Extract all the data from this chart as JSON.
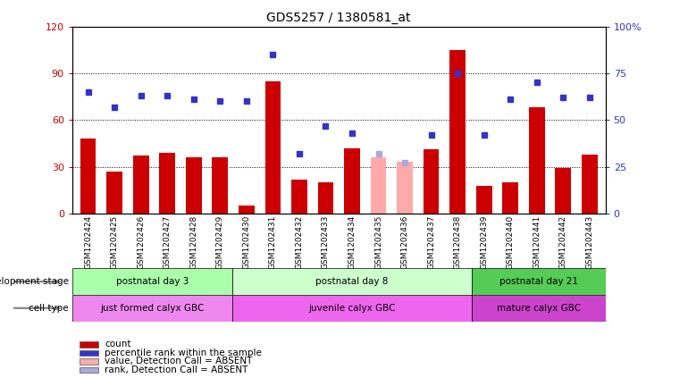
{
  "title": "GDS5257 / 1380581_at",
  "categories": [
    "GSM1202424",
    "GSM1202425",
    "GSM1202426",
    "GSM1202427",
    "GSM1202428",
    "GSM1202429",
    "GSM1202430",
    "GSM1202431",
    "GSM1202432",
    "GSM1202433",
    "GSM1202434",
    "GSM1202435",
    "GSM1202436",
    "GSM1202437",
    "GSM1202438",
    "GSM1202439",
    "GSM1202440",
    "GSM1202441",
    "GSM1202442",
    "GSM1202443"
  ],
  "red_bars": [
    48,
    27,
    37,
    39,
    36,
    36,
    5,
    85,
    22,
    20,
    42,
    0,
    0,
    41,
    105,
    18,
    20,
    68,
    29,
    38
  ],
  "absent_bar_values": [
    36,
    33
  ],
  "absent_bar_indices": [
    11,
    12
  ],
  "blue_dots": [
    65,
    57,
    63,
    63,
    61,
    60,
    60,
    85,
    32,
    47,
    43,
    0,
    0,
    42,
    75,
    42,
    61,
    70,
    62,
    62
  ],
  "absent_dot_values": [
    32,
    27
  ],
  "absent_dot_indices": [
    11,
    12
  ],
  "ylim_left": [
    0,
    120
  ],
  "ylim_right": [
    0,
    100
  ],
  "yticks_left": [
    0,
    30,
    60,
    90,
    120
  ],
  "ytick_labels_left": [
    "0",
    "30",
    "60",
    "90",
    "120"
  ],
  "yticks_right": [
    0,
    25,
    50,
    75,
    100
  ],
  "ytick_labels_right": [
    "0",
    "25",
    "50",
    "75",
    "100%"
  ],
  "bar_color_red": "#cc0000",
  "bar_color_absent": "#ffaaaa",
  "dot_color_blue": "#3333cc",
  "dot_color_absent": "#aaaadd",
  "plot_bg": "#ffffff",
  "tick_bg": "#cccccc",
  "dev_groups": [
    {
      "label": "postnatal day 3",
      "start": 0,
      "end": 6,
      "color": "#aaffaa"
    },
    {
      "label": "postnatal day 8",
      "start": 6,
      "end": 15,
      "color": "#ccffcc"
    },
    {
      "label": "postnatal day 21",
      "start": 15,
      "end": 20,
      "color": "#55cc55"
    }
  ],
  "cell_groups": [
    {
      "label": "just formed calyx GBC",
      "start": 0,
      "end": 6,
      "color": "#ee88ee"
    },
    {
      "label": "juvenile calyx GBC",
      "start": 6,
      "end": 15,
      "color": "#ee66ee"
    },
    {
      "label": "mature calyx GBC",
      "start": 15,
      "end": 20,
      "color": "#cc44cc"
    }
  ],
  "legend_items": [
    {
      "color": "#cc0000",
      "label": "count"
    },
    {
      "color": "#3333cc",
      "label": "percentile rank within the sample"
    },
    {
      "color": "#ffaaaa",
      "label": "value, Detection Call = ABSENT"
    },
    {
      "color": "#aaaadd",
      "label": "rank, Detection Call = ABSENT"
    }
  ]
}
